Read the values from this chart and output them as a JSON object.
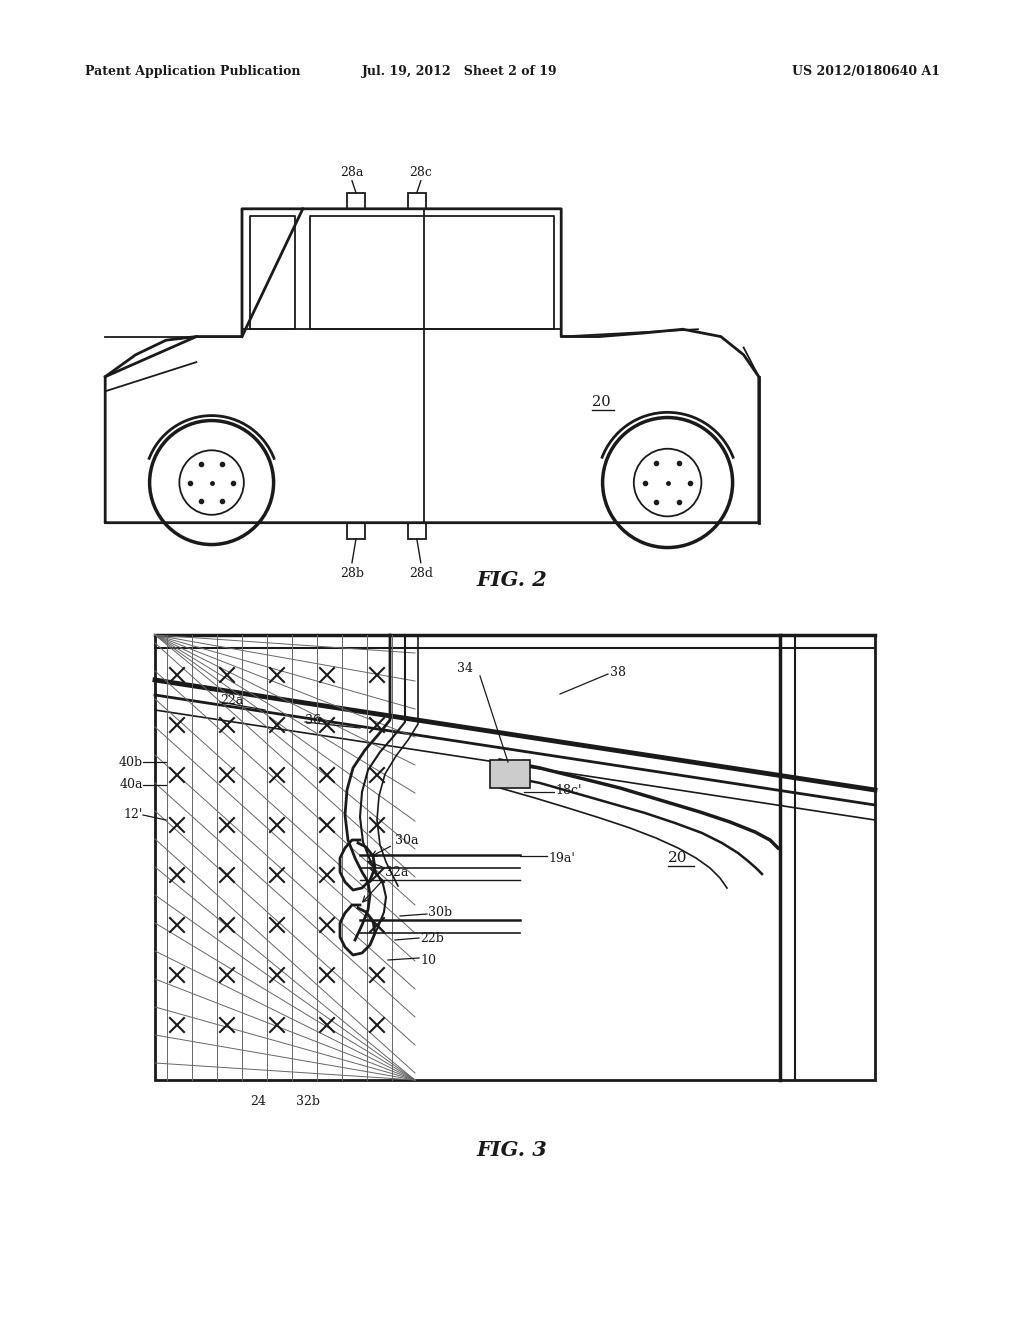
{
  "background_color": "#ffffff",
  "header_left": "Patent Application Publication",
  "header_center": "Jul. 19, 2012   Sheet 2 of 19",
  "header_right": "US 2012/0180640 A1",
  "fig2_caption": "FIG. 2",
  "fig3_caption": "FIG. 3"
}
